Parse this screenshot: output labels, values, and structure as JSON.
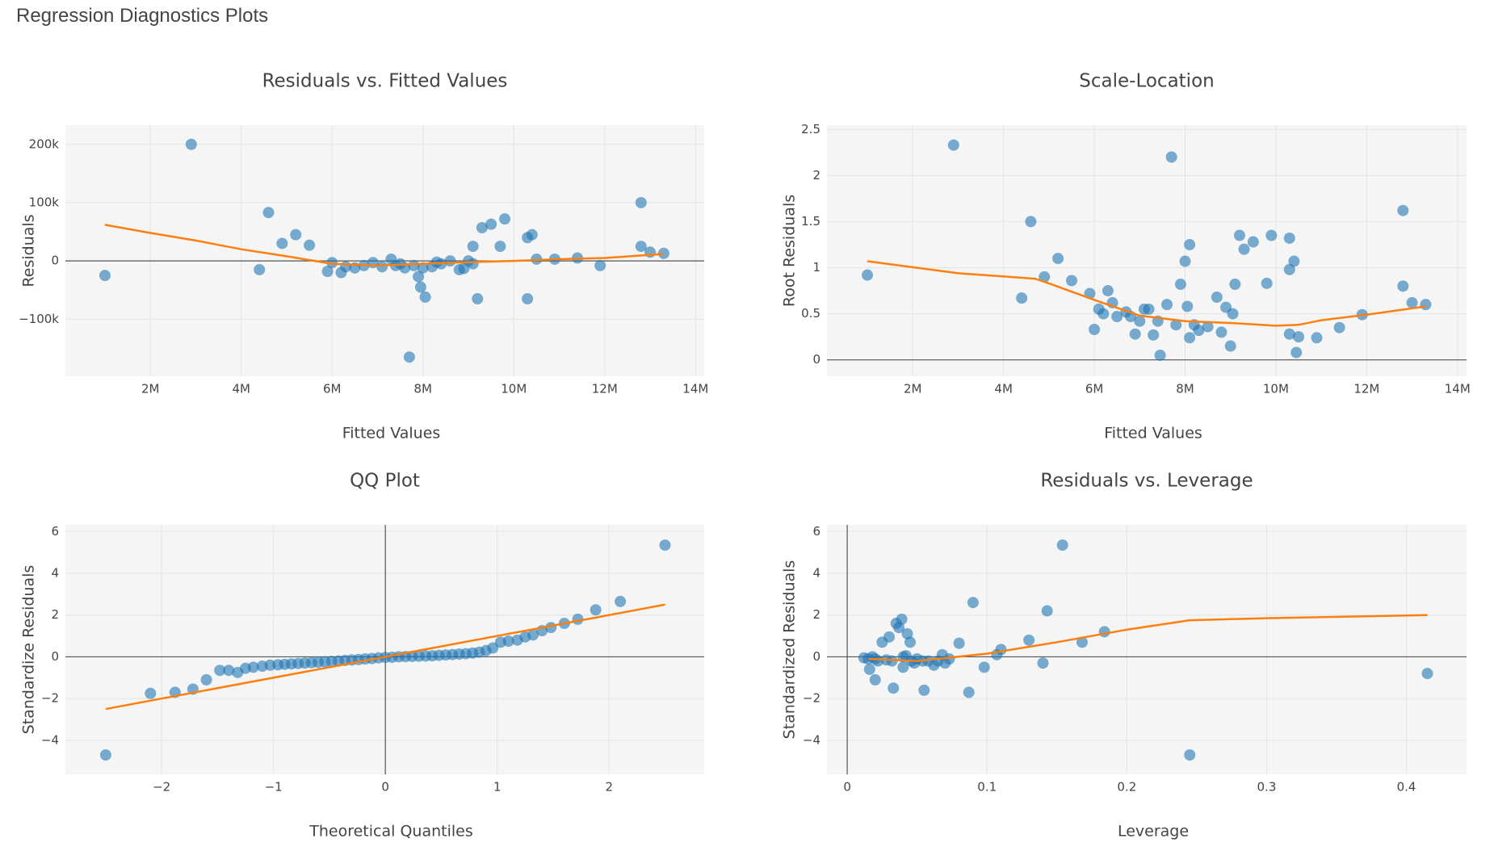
{
  "page_title": "Regression Diagnostics Plots",
  "chart_data": [
    {
      "type": "scatter",
      "title": "Residuals vs. Fitted Values",
      "x_label": "Fitted Values",
      "y_label": "Residuals",
      "xlim": [
        130000,
        14190000
      ],
      "ylim": [
        -198000,
        233000
      ],
      "xticks": [
        {
          "value": 2000000,
          "label": "2M"
        },
        {
          "value": 4000000,
          "label": "4M"
        },
        {
          "value": 6000000,
          "label": "6M"
        },
        {
          "value": 8000000,
          "label": "8M"
        },
        {
          "value": 10000000,
          "label": "10M"
        },
        {
          "value": 12000000,
          "label": "12M"
        },
        {
          "value": 14000000,
          "label": "14M"
        }
      ],
      "yticks": [
        {
          "value": -100000,
          "label": "−100k"
        },
        0,
        {
          "value": 100000,
          "label": "100k"
        },
        {
          "value": 200000,
          "label": "200k"
        }
      ],
      "grid": true,
      "zeroline": true,
      "series": [
        {
          "mode": "markers",
          "color": "#1f77b4",
          "x": [
            1000000,
            2900000,
            4400000,
            4600000,
            4900000,
            5200000,
            5500000,
            5900000,
            6000000,
            6200000,
            6300000,
            6500000,
            6700000,
            6900000,
            7100000,
            7300000,
            7400000,
            7500000,
            7600000,
            7700000,
            7800000,
            7900000,
            7950000,
            8050000,
            8000000,
            8200000,
            8400000,
            8600000,
            8800000,
            9000000,
            9100000,
            9200000,
            9300000,
            9500000,
            9700000,
            9800000,
            10300000,
            10300000,
            10400000,
            10500000,
            10900000,
            11400000,
            11900000,
            12800000,
            12800000,
            13000000,
            13300000,
            8900000,
            9100000,
            8300000
          ],
          "values": [
            -25000,
            200000,
            -15000,
            83000,
            30000,
            45000,
            27000,
            -18000,
            -3000,
            -20000,
            -10000,
            -12000,
            -8000,
            -3000,
            -10000,
            3000,
            -8000,
            -5000,
            -12000,
            -165000,
            -8000,
            -27000,
            -45000,
            -62000,
            -12000,
            -10000,
            -5000,
            0,
            -15000,
            0,
            25000,
            -65000,
            57000,
            63000,
            25000,
            72000,
            -65000,
            40000,
            45000,
            3000,
            3000,
            5000,
            -8000,
            100000,
            25000,
            15000,
            13000,
            -13000,
            -5000,
            -2000
          ]
        },
        {
          "mode": "lines",
          "color": "#ff7f0e",
          "x": [
            1000000,
            2000000,
            3000000,
            4000000,
            5000000,
            6000000,
            7000000,
            8000000,
            9000000,
            10000000,
            11000000,
            12000000,
            13300000
          ],
          "values": [
            62000,
            48000,
            35000,
            20000,
            8000,
            -5000,
            -8000,
            -5000,
            -2000,
            0,
            3000,
            5000,
            12000
          ]
        }
      ]
    },
    {
      "type": "scatter",
      "title": "Scale-Location",
      "x_label": "Fitted Values",
      "y_label": "Root Residuals",
      "xlim": [
        110000,
        14200000
      ],
      "ylim": [
        -0.178,
        2.546
      ],
      "xticks": [
        {
          "value": 2000000,
          "label": "2M"
        },
        {
          "value": 4000000,
          "label": "4M"
        },
        {
          "value": 6000000,
          "label": "6M"
        },
        {
          "value": 8000000,
          "label": "8M"
        },
        {
          "value": 10000000,
          "label": "10M"
        },
        {
          "value": 12000000,
          "label": "12M"
        },
        {
          "value": 14000000,
          "label": "14M"
        }
      ],
      "yticks": [
        0,
        0.5,
        1,
        1.5,
        2,
        2.5
      ],
      "grid": true,
      "zeroline": true,
      "series": [
        {
          "mode": "markers",
          "color": "#1f77b4",
          "x": [
            1000000,
            2900000,
            4400000,
            4600000,
            4900000,
            5200000,
            5500000,
            5900000,
            6000000,
            6100000,
            6200000,
            6300000,
            6400000,
            6500000,
            6700000,
            6800000,
            6900000,
            7000000,
            7100000,
            7200000,
            7300000,
            7400000,
            7450000,
            7600000,
            7700000,
            7800000,
            7900000,
            8000000,
            8050000,
            8100000,
            8100000,
            8200000,
            8300000,
            8500000,
            8700000,
            8800000,
            8900000,
            9000000,
            9050000,
            9100000,
            9200000,
            9300000,
            9500000,
            9800000,
            9900000,
            10300000,
            10300000,
            10400000,
            10300000,
            10500000,
            10450000,
            10900000,
            11400000,
            11900000,
            12800000,
            12800000,
            13000000,
            13300000
          ],
          "values": [
            0.92,
            2.33,
            0.67,
            1.5,
            0.9,
            1.1,
            0.86,
            0.72,
            0.33,
            0.55,
            0.5,
            0.75,
            0.62,
            0.47,
            0.52,
            0.47,
            0.28,
            0.42,
            0.55,
            0.55,
            0.27,
            0.42,
            0.05,
            0.6,
            2.2,
            0.38,
            0.82,
            1.07,
            0.58,
            1.25,
            0.24,
            0.38,
            0.32,
            0.36,
            0.68,
            0.3,
            0.57,
            0.15,
            0.5,
            0.82,
            1.35,
            1.2,
            1.28,
            0.83,
            1.35,
            1.32,
            0.98,
            1.07,
            0.28,
            0.25,
            0.08,
            0.24,
            0.35,
            0.49,
            1.62,
            0.8,
            0.62,
            0.6
          ]
        },
        {
          "mode": "lines",
          "color": "#ff7f0e",
          "x": [
            1000000,
            3000000,
            4700000,
            5000000,
            6000000,
            7000000,
            8000000,
            9000000,
            10000000,
            10500000,
            11000000,
            12000000,
            13300000
          ],
          "values": [
            1.07,
            0.94,
            0.88,
            0.83,
            0.65,
            0.48,
            0.42,
            0.4,
            0.37,
            0.38,
            0.43,
            0.49,
            0.58
          ]
        }
      ]
    },
    {
      "type": "scatter",
      "title": "QQ Plot",
      "x_label": "Theoretical Quantiles",
      "y_label": "Standardize Residuals",
      "xlim": [
        -2.86,
        2.85
      ],
      "ylim": [
        -5.63,
        6.32
      ],
      "xticks": [
        {
          "value": -2,
          "label": "−2"
        },
        {
          "value": -1,
          "label": "−1"
        },
        0,
        1,
        2
      ],
      "yticks": [
        {
          "value": -4,
          "label": "−4"
        },
        {
          "value": -2,
          "label": "−2"
        },
        0,
        2,
        4,
        6
      ],
      "grid": true,
      "zeroline": true,
      "series": [
        {
          "mode": "markers",
          "color": "#1f77b4",
          "x": [
            -2.5,
            -2.1,
            -1.88,
            -1.72,
            -1.6,
            -1.48,
            -1.4,
            -1.32,
            -1.25,
            -1.18,
            -1.1,
            -1.03,
            -0.96,
            -0.9,
            -0.84,
            -0.78,
            -0.72,
            -0.66,
            -0.6,
            -0.54,
            -0.48,
            -0.42,
            -0.36,
            -0.3,
            -0.24,
            -0.18,
            -0.12,
            -0.06,
            0,
            0.06,
            0.12,
            0.18,
            0.24,
            0.3,
            0.36,
            0.42,
            0.48,
            0.54,
            0.6,
            0.66,
            0.72,
            0.78,
            0.84,
            0.9,
            0.96,
            1.03,
            1.1,
            1.18,
            1.25,
            1.32,
            1.4,
            1.48,
            1.6,
            1.72,
            1.88,
            2.1,
            2.5
          ],
          "values": [
            -4.7,
            -1.75,
            -1.7,
            -1.55,
            -1.1,
            -0.65,
            -0.65,
            -0.75,
            -0.55,
            -0.5,
            -0.45,
            -0.4,
            -0.38,
            -0.36,
            -0.34,
            -0.32,
            -0.3,
            -0.28,
            -0.26,
            -0.24,
            -0.22,
            -0.2,
            -0.17,
            -0.15,
            -0.13,
            -0.1,
            -0.08,
            -0.05,
            -0.03,
            -0.02,
            0,
            0.01,
            0.02,
            0.03,
            0.04,
            0.05,
            0.07,
            0.09,
            0.11,
            0.13,
            0.15,
            0.18,
            0.22,
            0.3,
            0.42,
            0.7,
            0.75,
            0.8,
            0.95,
            1.05,
            1.25,
            1.4,
            1.6,
            1.8,
            2.25,
            2.65,
            5.35
          ]
        },
        {
          "mode": "lines",
          "color": "#ff7f0e",
          "x": [
            -2.5,
            2.5
          ],
          "values": [
            -2.5,
            2.5
          ]
        }
      ]
    },
    {
      "type": "scatter",
      "title": "Residuals vs. Leverage",
      "x_label": "Leverage",
      "y_label": "Standardized Residuals",
      "xlim": [
        -0.0145,
        0.443
      ],
      "ylim": [
        -5.63,
        6.32
      ],
      "xticks": [
        0,
        0.1,
        0.2,
        0.3,
        0.4
      ],
      "yticks": [
        {
          "value": -4,
          "label": "−4"
        },
        {
          "value": -2,
          "label": "−2"
        },
        0,
        2,
        4,
        6
      ],
      "grid": true,
      "zeroline": true,
      "series": [
        {
          "mode": "markers",
          "color": "#1f77b4",
          "x": [
            0.015,
            0.016,
            0.018,
            0.02,
            0.022,
            0.02,
            0.025,
            0.03,
            0.032,
            0.033,
            0.035,
            0.037,
            0.039,
            0.04,
            0.04,
            0.042,
            0.043,
            0.045,
            0.046,
            0.05,
            0.054,
            0.055,
            0.058,
            0.062,
            0.065,
            0.07,
            0.073,
            0.08,
            0.087,
            0.09,
            0.098,
            0.107,
            0.11,
            0.13,
            0.14,
            0.143,
            0.154,
            0.168,
            0.184,
            0.245,
            0.415,
            0.012,
            0.028,
            0.048,
            0.068
          ],
          "values": [
            -0.1,
            -0.6,
            0,
            -0.1,
            -0.2,
            -1.1,
            0.7,
            0.95,
            -0.2,
            -1.5,
            1.6,
            1.4,
            1.8,
            -0.5,
            0,
            0.05,
            1.1,
            0.7,
            -0.2,
            -0.1,
            -0.2,
            -1.6,
            -0.2,
            -0.4,
            -0.2,
            -0.3,
            -0.1,
            0.65,
            -1.7,
            2.6,
            -0.5,
            0.1,
            0.35,
            0.8,
            -0.3,
            2.2,
            5.35,
            0.7,
            1.2,
            -4.7,
            -0.8,
            -0.05,
            -0.15,
            -0.3,
            0.1
          ]
        },
        {
          "mode": "lines",
          "color": "#ff7f0e",
          "x": [
            0.015,
            0.05,
            0.1,
            0.15,
            0.2,
            0.245,
            0.3,
            0.415
          ],
          "values": [
            -0.1,
            -0.2,
            0.15,
            0.7,
            1.3,
            1.75,
            1.85,
            2.0
          ]
        }
      ]
    }
  ]
}
